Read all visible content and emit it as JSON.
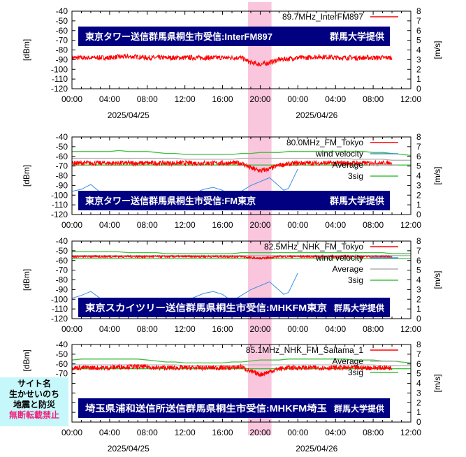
{
  "colors": {
    "signal": "#ff0000",
    "wind": "#3a8ee0",
    "average": "#b0b0b0",
    "sig": "#40c040",
    "band": "#f9c6dd",
    "banner": "#000080"
  },
  "watermark": {
    "line1": "サイト名",
    "line2": "生かせいのち",
    "line3": "地震と防災",
    "line4": "無断転載禁止"
  },
  "chart_data": [
    {
      "type": "line",
      "title": "東京タワー送信群馬県桐生市受信:InterFM897",
      "credit": "群馬大学提供",
      "ylabel": "[dBm]",
      "y2label": "[m/s]",
      "ylim": [
        -120,
        -40
      ],
      "y2lim": [
        0,
        8
      ],
      "xticks": [
        "00:00",
        "04:00",
        "08:00",
        "12:00",
        "16:00",
        "20:00",
        "00:00",
        "04:00",
        "08:00",
        "12:00"
      ],
      "dates": [
        "2025/04/25",
        "2025/04/26"
      ],
      "highlight_hours": [
        18.7,
        21.2
      ],
      "legend": [
        "89.7MHz_InterFM897"
      ],
      "signal": [
        -88,
        -88,
        -88,
        -88,
        -88,
        -87,
        -87,
        -87,
        -88,
        -88,
        -88,
        -88,
        -88,
        -88,
        -88,
        -88,
        -88,
        -88,
        -88,
        -93,
        -95,
        -93,
        -90,
        -89,
        -88,
        -88,
        -87,
        -87,
        -88,
        -88,
        -88,
        -88,
        -88,
        -88,
        -88
      ]
    },
    {
      "type": "line",
      "title": "東京タワー送信群馬県桐生市受信:FM東京",
      "credit": "群馬大学提供",
      "ylabel": "[dBm]",
      "y2label": "[m/s]",
      "ylim": [
        -120,
        -40
      ],
      "y2lim": [
        0,
        8
      ],
      "xticks": [
        "00:00",
        "04:00",
        "08:00",
        "12:00",
        "16:00",
        "20:00",
        "00:00",
        "04:00",
        "08:00",
        "12:00"
      ],
      "highlight_hours": [
        18.7,
        21.2
      ],
      "legend": [
        "80.0MHz_FM_Tokyo",
        "wind velocity",
        "Average",
        "3sig"
      ],
      "signal": [
        -67,
        -67,
        -67,
        -67,
        -67,
        -67,
        -67,
        -67,
        -67,
        -67,
        -67,
        -67,
        -67,
        -67,
        -67,
        -67,
        -67,
        -67,
        -67,
        -72,
        -75,
        -73,
        -69,
        -68,
        -67,
        -67,
        -67,
        -67,
        -67,
        -67,
        -67,
        -67,
        -67,
        -67,
        -67
      ],
      "average": [
        -62,
        -62,
        -62,
        -62,
        -62,
        -62,
        -62,
        -62,
        -62,
        -62,
        -62,
        -62,
        -63,
        -63,
        -63,
        -63,
        -63,
        -63,
        -62,
        -62,
        -62,
        -62,
        -62,
        -62,
        -62,
        -62,
        -62,
        -62,
        -62,
        -62,
        -63,
        -63,
        -63,
        -63,
        -64,
        -64,
        -64
      ],
      "sig_upper": [
        -55,
        -55,
        -55,
        -55,
        -55,
        -54,
        -55,
        -55,
        -55,
        -56,
        -57,
        -57,
        -58,
        -58,
        -58,
        -58,
        -58,
        -58,
        -57,
        -57,
        -56,
        -56,
        -56,
        -55,
        -55,
        -55,
        -55,
        -55,
        -55,
        -55,
        -55,
        -55,
        -56,
        -56,
        -57,
        -58,
        -59
      ],
      "sig_lower": [
        -69,
        -69,
        -69,
        -69,
        -69,
        -69,
        -69,
        -69,
        -69,
        -69,
        -69,
        -69,
        -69,
        -69,
        -69,
        -69,
        -69,
        -69,
        -69,
        -69,
        -69,
        -69,
        -69,
        -69,
        -69,
        -69,
        -69,
        -69,
        -69,
        -69,
        -69,
        -69,
        -69,
        -69,
        -69,
        -69,
        -69
      ],
      "wind": [
        [
          0,
          2.4
        ],
        [
          1,
          2.6
        ],
        [
          2,
          3.1
        ],
        [
          3,
          2.3
        ],
        [
          4,
          1.5
        ],
        [
          8,
          1.2
        ],
        [
          12,
          1.8
        ],
        [
          14,
          2.6
        ],
        [
          15,
          2.8
        ],
        [
          16,
          2.5
        ],
        [
          17,
          1.8
        ],
        [
          19,
          3.0
        ],
        [
          21,
          3.8
        ],
        [
          22.5,
          2.5
        ],
        [
          23,
          2.7
        ],
        [
          24,
          4.7
        ]
      ]
    },
    {
      "type": "line",
      "title": "東京スカイツリー送信群馬県桐生市受信:MHKFM東京",
      "credit": "群馬大学提供",
      "ylabel": "[dBm]",
      "y2label": "[m/s]",
      "ylim": [
        -120,
        -40
      ],
      "y2lim": [
        0,
        8
      ],
      "xticks": [
        "00:00",
        "04:00",
        "08:00",
        "12:00",
        "16:00",
        "20:00",
        "00:00",
        "04:00",
        "08:00",
        "12:00"
      ],
      "highlight_hours": [
        18.7,
        21.2
      ],
      "legend": [
        "82.5MHz_NHK_FM_Tokyo",
        "wind velocity",
        "Average",
        "3sig"
      ],
      "signal": [
        -56,
        -56,
        -56,
        -56,
        -56,
        -56,
        -56,
        -56,
        -56,
        -56,
        -56,
        -56,
        -56,
        -56,
        -56,
        -56,
        -56,
        -56,
        -56,
        -57,
        -58,
        -57,
        -56,
        -56,
        -56,
        -56,
        -56,
        -56,
        -56,
        -56,
        -56,
        -56,
        -56,
        -56,
        -56
      ],
      "average": [
        -55,
        -55,
        -55,
        -55,
        -55,
        -55,
        -55,
        -55,
        -55,
        -55,
        -55,
        -55,
        -55,
        -55,
        -55,
        -55,
        -55,
        -55,
        -55,
        -55,
        -55,
        -55,
        -55,
        -55,
        -55,
        -55,
        -55,
        -55,
        -55,
        -55,
        -55,
        -55,
        -55,
        -55,
        -55,
        -55,
        -55
      ],
      "sig_upper": [
        -51,
        -51,
        -51,
        -51,
        -51,
        -51,
        -52,
        -52,
        -52,
        -52,
        -53,
        -53,
        -53,
        -53,
        -53,
        -53,
        -53,
        -53,
        -52,
        -52,
        -52,
        -52,
        -52,
        -52,
        -52,
        -52,
        -52,
        -52,
        -52,
        -52,
        -52,
        -52,
        -52,
        -52,
        -53,
        -53,
        -53
      ],
      "sig_lower": [
        -58,
        -58,
        -58,
        -58,
        -58,
        -58,
        -58,
        -58,
        -58,
        -58,
        -58,
        -58,
        -58,
        -58,
        -58,
        -58,
        -58,
        -58,
        -58,
        -58,
        -58,
        -58,
        -58,
        -58,
        -58,
        -58,
        -58,
        -58,
        -58,
        -58,
        -58,
        -58,
        -58,
        -58,
        -58,
        -58,
        -58
      ],
      "wind": [
        [
          0,
          2.1
        ],
        [
          1,
          2.4
        ],
        [
          2,
          2.8
        ],
        [
          3,
          2.1
        ],
        [
          4,
          1.5
        ],
        [
          8,
          1.2
        ],
        [
          12,
          1.8
        ],
        [
          14,
          2.6
        ],
        [
          15,
          2.8
        ],
        [
          16,
          2.5
        ],
        [
          17,
          1.8
        ],
        [
          19,
          3.0
        ],
        [
          21,
          3.8
        ],
        [
          22.5,
          2.5
        ],
        [
          23,
          2.7
        ],
        [
          24,
          4.7
        ]
      ]
    },
    {
      "type": "line",
      "title": "埼玉県浦和送信所送信群馬県桐生市受信:MHKFM埼玉",
      "credit": "群馬大学提供",
      "ylabel": "[dBm]",
      "y2label": "[m/s]",
      "ylim": [
        -120,
        -40
      ],
      "y2lim": [
        0,
        8
      ],
      "xticks": [
        "00:00",
        "04:00",
        "08:00",
        "12:00",
        "16:00",
        "20:00",
        "00:00",
        "04:00",
        "08:00",
        "12:00"
      ],
      "dates": [
        "2025/04/25",
        "2025/04/26"
      ],
      "highlight_hours": [
        18.7,
        21.2
      ],
      "legend": [
        "85.1MHz_NHK_FM_Saitama_1",
        "Average",
        "3sig"
      ],
      "signal": [
        -64,
        -64,
        -64,
        -64,
        -64,
        -63,
        -63,
        -63,
        -63,
        -64,
        -64,
        -64,
        -64,
        -64,
        -64,
        -64,
        -64,
        -64,
        -63,
        -68,
        -71,
        -68,
        -65,
        -64,
        -64,
        -64,
        -64,
        -64,
        -64,
        -64,
        -64,
        -64,
        -64,
        -64,
        -64
      ],
      "average": [
        -61,
        -61,
        -61,
        -61,
        -61,
        -61,
        -61,
        -61,
        -61,
        -61,
        -61,
        -61,
        -62,
        -62,
        -62,
        -62,
        -62,
        -62,
        -61,
        -61,
        -61,
        -61,
        -61,
        -61,
        -61,
        -61,
        -61,
        -61,
        -61,
        -61,
        -61,
        -61,
        -61,
        -62,
        -62,
        -62,
        -62
      ],
      "sig_upper": [
        -56,
        -55,
        -55,
        -55,
        -55,
        -55,
        -55,
        -55,
        -56,
        -57,
        -58,
        -58,
        -59,
        -59,
        -59,
        -59,
        -59,
        -58,
        -58,
        -57,
        -56,
        -56,
        -56,
        -55,
        -55,
        -55,
        -55,
        -55,
        -55,
        -55,
        -56,
        -56,
        -56,
        -57,
        -57,
        -58,
        -59
      ],
      "sig_lower": [
        -65,
        -65,
        -65,
        -65,
        -65,
        -65,
        -65,
        -65,
        -65,
        -65,
        -65,
        -65,
        -65,
        -65,
        -65,
        -65,
        -65,
        -65,
        -65,
        -65,
        -65,
        -65,
        -65,
        -65,
        -65,
        -65,
        -65,
        -65,
        -65,
        -65,
        -65,
        -65,
        -65,
        -65,
        -65,
        -65,
        -65
      ]
    }
  ]
}
